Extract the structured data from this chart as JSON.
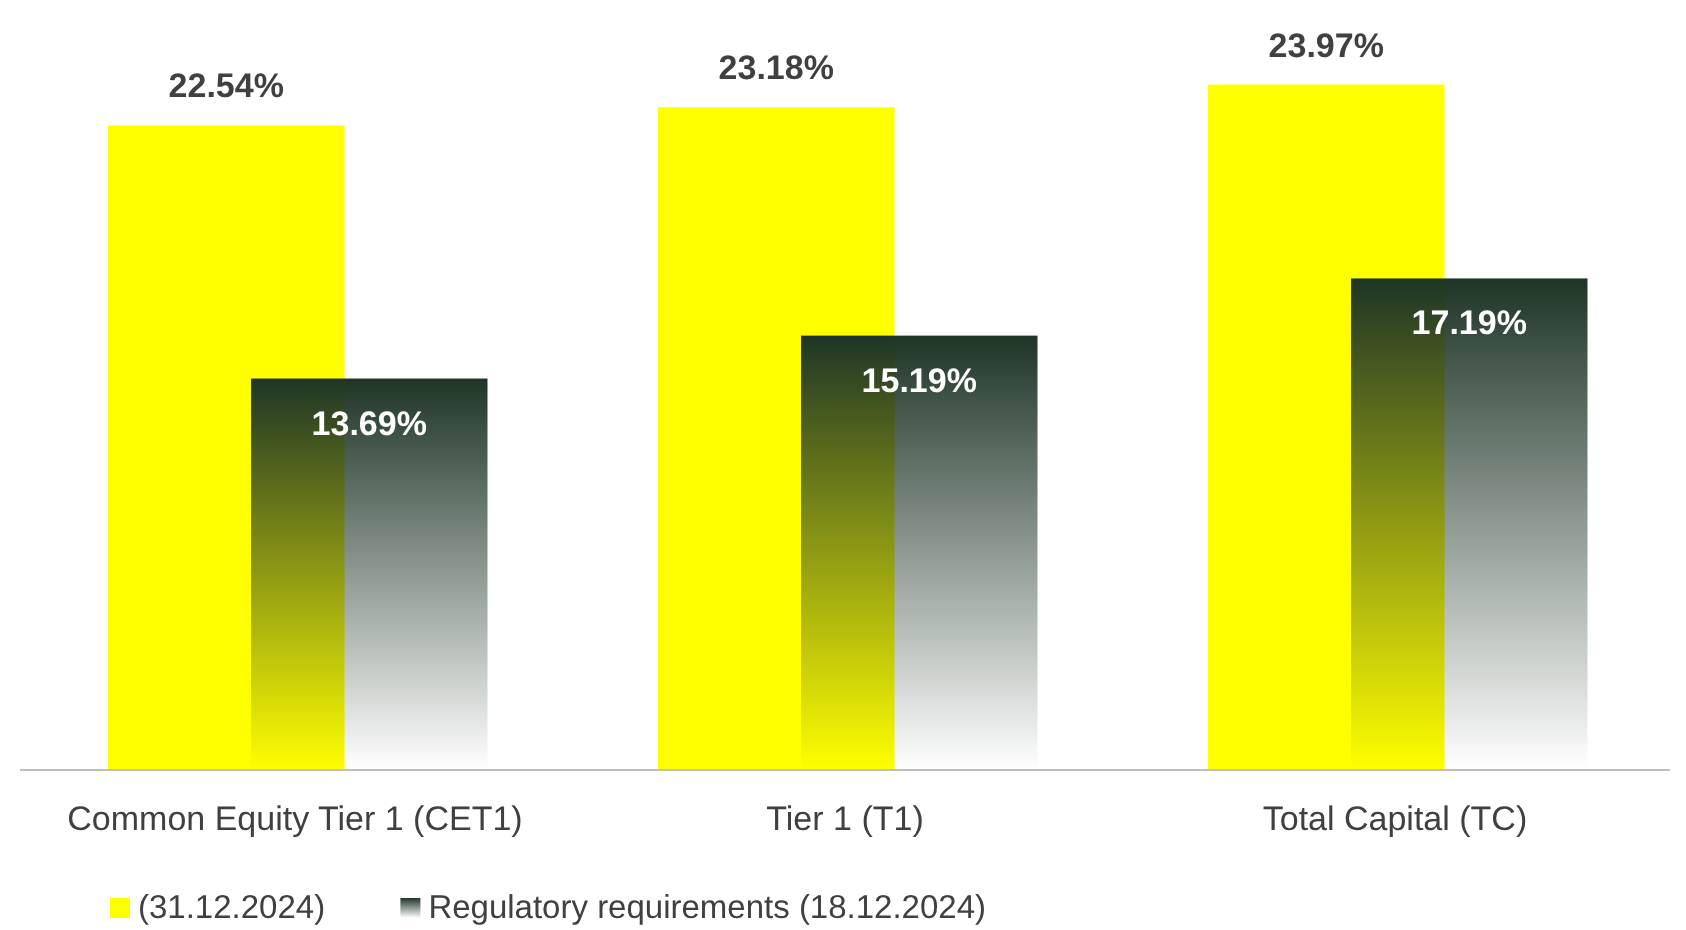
{
  "chart_data": {
    "type": "bar",
    "categories": [
      "Common Equity Tier 1 (CET1)",
      "Tier 1 (T1)",
      "Total Capital (TC)"
    ],
    "series": [
      {
        "name": "(31.12.2024)",
        "color": "#ffff00",
        "values": [
          22.54,
          23.18,
          23.97
        ],
        "value_labels": [
          "22.54%",
          "23.18%",
          "23.97%"
        ]
      },
      {
        "name": "Regulatory requirements (18.12.2024)",
        "color": "#1e3526",
        "values": [
          13.69,
          15.19,
          17.19
        ],
        "value_labels": [
          "13.69%",
          "15.19%",
          "17.19%"
        ]
      }
    ],
    "legend": "bottom"
  }
}
